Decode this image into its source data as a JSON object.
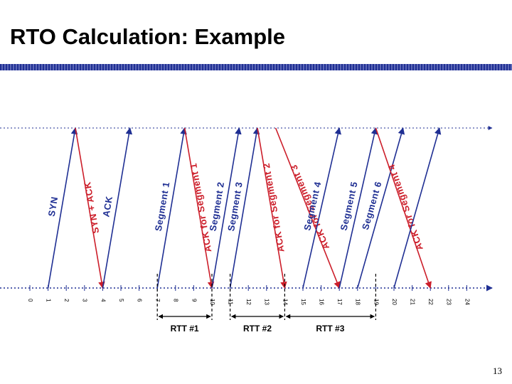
{
  "slide": {
    "title": "RTO Calculation: Example",
    "page_number": "13"
  },
  "colors": {
    "title_rule": "#1f2f93",
    "sender_arrow": "#1f2f93",
    "ack_arrow": "#cc1e2a",
    "rtt_marker": "#000000"
  },
  "timeline": {
    "ticks": [
      "0",
      "1",
      "2",
      "3",
      "4",
      "5",
      "6",
      "7",
      "8",
      "9",
      "10",
      "11",
      "12",
      "13",
      "14",
      "15",
      "16",
      "17",
      "18",
      "19",
      "20",
      "21",
      "22",
      "23",
      "24"
    ]
  },
  "arrows": [
    {
      "id": "syn",
      "label": "SYN",
      "direction": "up",
      "color": "blue",
      "from_t": 1,
      "to_t": 2.5
    },
    {
      "id": "syn-ack",
      "label": "SYN + ACK",
      "direction": "down",
      "color": "red",
      "from_t": 2.5,
      "to_t": 4
    },
    {
      "id": "ack",
      "label": "ACK",
      "direction": "up",
      "color": "blue",
      "from_t": 4,
      "to_t": 5.5
    },
    {
      "id": "seg1",
      "label": "Segment 1",
      "direction": "up",
      "color": "blue",
      "from_t": 7,
      "to_t": 8.5
    },
    {
      "id": "ack-seg1",
      "label": "ACK for Segment 1",
      "direction": "down",
      "color": "red",
      "from_t": 8.5,
      "to_t": 10
    },
    {
      "id": "seg2",
      "label": "Segment 2",
      "direction": "up",
      "color": "blue",
      "from_t": 10,
      "to_t": 11.5
    },
    {
      "id": "seg3",
      "label": "Segment 3",
      "direction": "up",
      "color": "blue",
      "from_t": 11,
      "to_t": 12.5
    },
    {
      "id": "ack-seg2",
      "label": "ACK for Segment 2",
      "direction": "down",
      "color": "red",
      "from_t": 12.5,
      "to_t": 14
    },
    {
      "id": "ack-seg3",
      "label": "ACK for Segment 3",
      "direction": "down",
      "color": "red",
      "from_t": 13.5,
      "to_t": 17
    },
    {
      "id": "seg4",
      "label": "Segment 4",
      "direction": "up",
      "color": "blue",
      "from_t": 15,
      "to_t": 17
    },
    {
      "id": "seg5",
      "label": "Segment 5",
      "direction": "up",
      "color": "blue",
      "from_t": 17,
      "to_t": 19
    },
    {
      "id": "seg6",
      "label": "Segment 6",
      "direction": "up",
      "color": "blue",
      "from_t": 18,
      "to_t": 20.5
    },
    {
      "id": "ack-seg4",
      "label": "ACK for Segment 4",
      "direction": "down",
      "color": "red",
      "from_t": 19,
      "to_t": 22
    },
    {
      "id": "seg-lost",
      "label": "",
      "direction": "up",
      "color": "blue",
      "from_t": 20,
      "to_t": 22.5
    }
  ],
  "rtt_measurements": [
    {
      "label": "RTT #1",
      "from_t": 7,
      "to_t": 10
    },
    {
      "label": "RTT #2",
      "from_t": 11,
      "to_t": 14
    },
    {
      "label": "RTT #3",
      "from_t": 14,
      "to_t": 19
    }
  ]
}
